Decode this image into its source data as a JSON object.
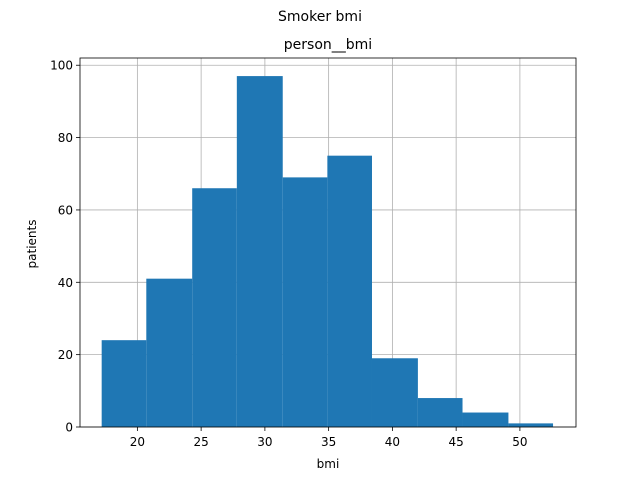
{
  "chart_data": {
    "type": "bar",
    "suptitle": "Smoker bmi",
    "title": "person__bmi",
    "xlabel": "bmi",
    "ylabel": "patients",
    "xlim": [
      15.5,
      54.4
    ],
    "ylim": [
      0,
      102
    ],
    "xticks": [
      20,
      25,
      30,
      35,
      40,
      45,
      50
    ],
    "yticks": [
      0,
      20,
      40,
      60,
      80,
      100
    ],
    "grid": true,
    "bar_color": "#1f77b4",
    "bins": [
      {
        "x0": 17.2,
        "x1": 20.7,
        "value": 24
      },
      {
        "x0": 20.7,
        "x1": 24.3,
        "value": 41
      },
      {
        "x0": 24.3,
        "x1": 27.8,
        "value": 66
      },
      {
        "x0": 27.8,
        "x1": 31.4,
        "value": 97
      },
      {
        "x0": 31.4,
        "x1": 34.9,
        "value": 69
      },
      {
        "x0": 34.9,
        "x1": 38.4,
        "value": 75
      },
      {
        "x0": 38.4,
        "x1": 42.0,
        "value": 19
      },
      {
        "x0": 42.0,
        "x1": 45.5,
        "value": 8
      },
      {
        "x0": 45.5,
        "x1": 49.1,
        "value": 4
      },
      {
        "x0": 49.1,
        "x1": 52.6,
        "value": 1
      }
    ]
  }
}
